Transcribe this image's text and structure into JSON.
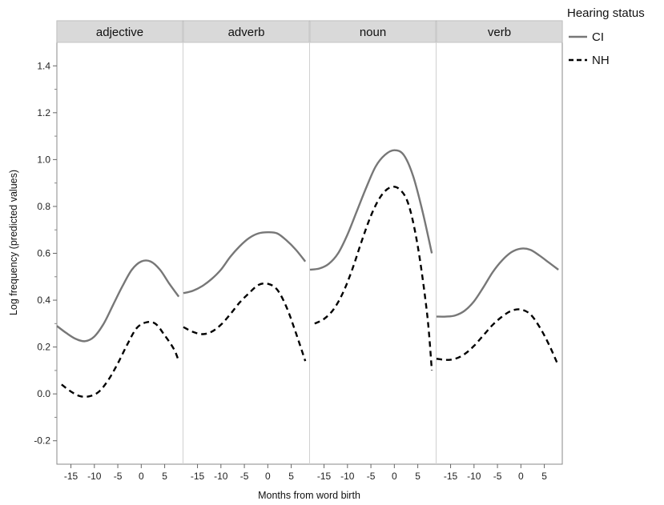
{
  "chart_data": {
    "type": "line",
    "xlabel": "Months from word birth",
    "ylabel": "Log frequency (predicted values)",
    "xlim": [
      -18,
      9
    ],
    "ylim": [
      -0.3,
      1.5
    ],
    "x_ticks": [
      -15,
      -10,
      -5,
      0,
      5
    ],
    "y_ticks": [
      -0.2,
      0.0,
      0.2,
      0.4,
      0.6,
      0.8,
      1.0,
      1.2,
      1.4
    ],
    "y_tick_labels": [
      "-0.2",
      "0.0",
      "0.2",
      "0.4",
      "0.6",
      "0.8",
      "1.0",
      "1.2",
      "1.4"
    ],
    "legend": {
      "title": "Hearing status",
      "position": "top-right",
      "entries": [
        {
          "name": "CI",
          "style": "solid",
          "color": "#777777"
        },
        {
          "name": "NH",
          "style": "dashed",
          "color": "#000000"
        }
      ]
    },
    "grid": false,
    "panels": [
      {
        "label": "adjective",
        "series": [
          {
            "name": "CI",
            "x": [
              -18,
              -16,
              -14,
              -12,
              -10,
              -8,
              -6,
              -4,
              -2,
              0,
              2,
              4,
              6,
              8
            ],
            "y": [
              0.29,
              0.26,
              0.235,
              0.225,
              0.245,
              0.3,
              0.38,
              0.46,
              0.53,
              0.565,
              0.565,
              0.53,
              0.47,
              0.415
            ]
          },
          {
            "name": "NH",
            "x": [
              -17,
              -15,
              -13,
              -11,
              -9,
              -7,
              -5,
              -3,
              -1,
              1,
              3,
              5,
              7,
              8
            ],
            "y": [
              0.04,
              0.01,
              -0.01,
              -0.01,
              0.01,
              0.06,
              0.13,
              0.21,
              0.28,
              0.305,
              0.3,
              0.25,
              0.19,
              0.14
            ]
          }
        ]
      },
      {
        "label": "adverb",
        "series": [
          {
            "name": "CI",
            "x": [
              -18,
              -16,
              -14,
              -12,
              -10,
              -8,
              -6,
              -4,
              -2,
              0,
              2,
              4,
              6,
              8
            ],
            "y": [
              0.43,
              0.44,
              0.46,
              0.49,
              0.53,
              0.585,
              0.63,
              0.665,
              0.685,
              0.69,
              0.685,
              0.655,
              0.615,
              0.565
            ]
          },
          {
            "name": "NH",
            "x": [
              -18,
              -16,
              -14,
              -12,
              -10,
              -8,
              -6,
              -4,
              -2,
              0,
              2,
              4,
              6,
              8
            ],
            "y": [
              0.285,
              0.265,
              0.255,
              0.265,
              0.295,
              0.34,
              0.39,
              0.43,
              0.465,
              0.47,
              0.445,
              0.37,
              0.26,
              0.14
            ]
          }
        ]
      },
      {
        "label": "noun",
        "series": [
          {
            "name": "CI",
            "x": [
              -18,
              -16,
              -14,
              -12,
              -10,
              -8,
              -6,
              -4,
              -2,
              0,
              2,
              4,
              6,
              8
            ],
            "y": [
              0.53,
              0.535,
              0.555,
              0.6,
              0.68,
              0.78,
              0.88,
              0.97,
              1.02,
              1.04,
              1.02,
              0.93,
              0.78,
              0.6
            ]
          },
          {
            "name": "NH",
            "x": [
              -17,
              -15,
              -13,
              -11,
              -9,
              -7,
              -5,
              -3,
              -1,
              1,
              3,
              5,
              7,
              8
            ],
            "y": [
              0.3,
              0.32,
              0.36,
              0.43,
              0.53,
              0.65,
              0.76,
              0.84,
              0.88,
              0.875,
              0.81,
              0.63,
              0.34,
              0.1
            ]
          }
        ]
      },
      {
        "label": "verb",
        "series": [
          {
            "name": "CI",
            "x": [
              -18,
              -16,
              -14,
              -12,
              -10,
              -8,
              -6,
              -4,
              -2,
              0,
              2,
              4,
              6,
              8
            ],
            "y": [
              0.33,
              0.33,
              0.335,
              0.355,
              0.395,
              0.455,
              0.52,
              0.57,
              0.605,
              0.62,
              0.615,
              0.59,
              0.56,
              0.53
            ]
          },
          {
            "name": "NH",
            "x": [
              -18,
              -16,
              -14,
              -12,
              -10,
              -8,
              -6,
              -4,
              -2,
              0,
              2,
              4,
              6,
              8
            ],
            "y": [
              0.15,
              0.145,
              0.15,
              0.17,
              0.205,
              0.25,
              0.295,
              0.33,
              0.355,
              0.36,
              0.34,
              0.285,
              0.21,
              0.12
            ]
          }
        ]
      }
    ]
  }
}
